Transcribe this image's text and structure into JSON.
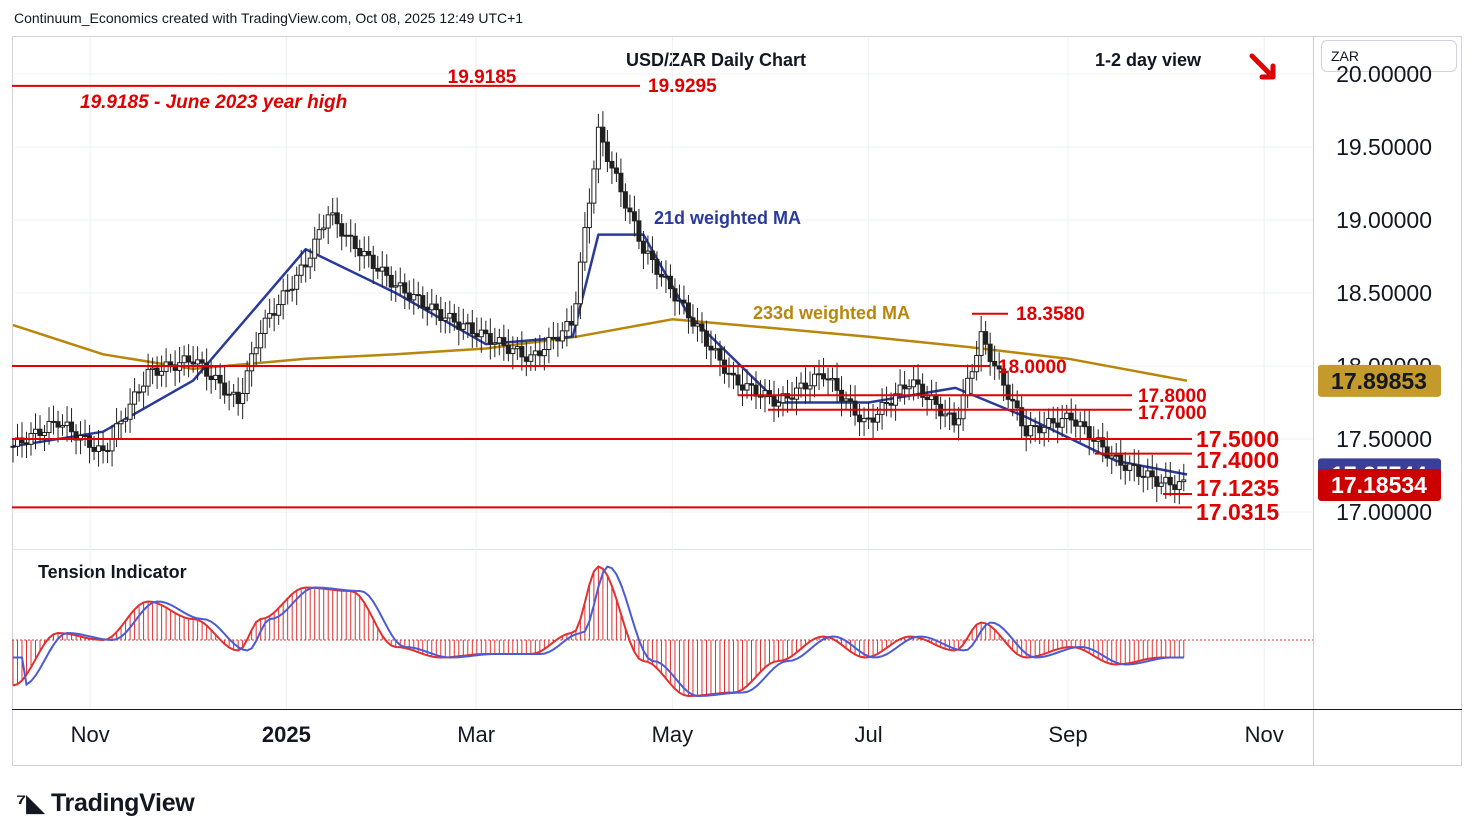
{
  "header": {
    "attribution": "Continuum_Economics created with TradingView.com, Oct 08, 2025 12:49 UTC+1",
    "currency": "ZAR",
    "title": "USD/ZAR Daily Chart",
    "view": "1-2 day view",
    "tension_label": "Tension Indicator",
    "logo_text": "TradingView"
  },
  "colors": {
    "support_resistance": "#e00000",
    "ma21": "#2a3a9a",
    "ma233": "#b8860b",
    "candle": "#202020",
    "price_badge_red": "#cc0000",
    "price_badge_blue": "#3a3f99",
    "price_badge_gold": "#c49a2c",
    "arrow": "#e00000",
    "tension_fill": "#e03030",
    "tension_line": "#4b5bd6"
  },
  "chart_data": {
    "type": "line",
    "title": "USD/ZAR Daily Chart",
    "x_ticks": [
      "Nov",
      "2025",
      "Mar",
      "May",
      "Jul",
      "Sep",
      "Nov"
    ],
    "y_ticks": [
      "20.00000",
      "19.50000",
      "19.00000",
      "18.50000",
      "18.00000",
      "17.50000",
      "17.00000"
    ],
    "ylim": [
      16.75,
      20.2
    ],
    "grid": true,
    "series": [
      {
        "name": "",
        "role": "price",
        "x": [
          "2024-10-08",
          "2024-10-22",
          "2024-11-05",
          "2024-11-19",
          "2024-12-03",
          "2024-12-17",
          "2024-12-24",
          "2025-01-07",
          "2025-01-14",
          "2025-01-21",
          "2025-02-04",
          "2025-02-18",
          "2025-03-04",
          "2025-03-18",
          "2025-03-31",
          "2025-04-08",
          "2025-04-15",
          "2025-04-22",
          "2025-05-06",
          "2025-05-20",
          "2025-06-03",
          "2025-06-17",
          "2025-06-30",
          "2025-07-14",
          "2025-07-28",
          "2025-08-05",
          "2025-08-19",
          "2025-09-02",
          "2025-09-16",
          "2025-09-30",
          "2025-10-08"
        ],
        "values": [
          17.45,
          17.62,
          17.4,
          17.95,
          18.05,
          17.75,
          18.25,
          18.7,
          19.05,
          18.85,
          18.55,
          18.35,
          18.2,
          18.05,
          18.3,
          19.6,
          19.2,
          18.8,
          18.35,
          17.9,
          17.75,
          17.95,
          17.6,
          17.9,
          17.6,
          18.2,
          17.55,
          17.65,
          17.35,
          17.2,
          17.185
        ]
      },
      {
        "name": "21d weighted MA",
        "x": [
          "2024-10-08",
          "2024-11-05",
          "2024-12-03",
          "2025-01-07",
          "2025-02-04",
          "2025-03-04",
          "2025-03-31",
          "2025-04-08",
          "2025-04-22",
          "2025-05-06",
          "2025-06-03",
          "2025-07-01",
          "2025-07-28",
          "2025-08-19",
          "2025-09-16",
          "2025-10-08"
        ],
        "values": [
          17.45,
          17.55,
          17.9,
          18.8,
          18.5,
          18.15,
          18.2,
          18.9,
          18.9,
          18.35,
          17.75,
          17.75,
          17.85,
          17.65,
          17.35,
          17.257
        ]
      },
      {
        "name": "233d weighted MA",
        "x": [
          "2024-10-08",
          "2024-11-05",
          "2024-12-03",
          "2025-01-07",
          "2025-02-04",
          "2025-03-04",
          "2025-04-01",
          "2025-05-01",
          "2025-06-01",
          "2025-07-01",
          "2025-08-01",
          "2025-09-01",
          "2025-10-08"
        ],
        "values": [
          18.28,
          18.08,
          17.98,
          18.05,
          18.08,
          18.12,
          18.2,
          18.32,
          18.26,
          18.2,
          18.13,
          18.05,
          17.899
        ]
      }
    ],
    "levels": [
      {
        "label": "19.9185",
        "value": 19.9185
      },
      {
        "label": "19.9185 - June 2023 year high",
        "value": 19.9185
      },
      {
        "label": "19.9295",
        "value": 19.9295
      },
      {
        "label": "18.3580",
        "value": 18.358
      },
      {
        "label": "18.0000",
        "value": 18.0
      },
      {
        "label": "17.8000",
        "value": 17.8
      },
      {
        "label": "17.7000",
        "value": 17.7
      },
      {
        "label": "17.5000",
        "value": 17.5
      },
      {
        "label": "17.4000",
        "value": 17.4
      },
      {
        "label": "17.1235",
        "value": 17.1235
      },
      {
        "label": "17.0315",
        "value": 17.0315
      }
    ],
    "annotations": [
      "21d weighted MA",
      "233d weighted MA"
    ],
    "price_badges": [
      {
        "label": "17.89853",
        "value": 17.89853,
        "color": "gold"
      },
      {
        "label": "17.25744",
        "value": 17.25744,
        "color": "blue"
      },
      {
        "label": "17.18534",
        "value": 17.18534,
        "color": "red"
      }
    ],
    "tension": {
      "name": "Tension Indicator",
      "x": [
        "2024-10-08",
        "2024-10-22",
        "2024-11-05",
        "2024-11-19",
        "2024-12-03",
        "2024-12-17",
        "2024-12-24",
        "2025-01-07",
        "2025-01-21",
        "2025-02-04",
        "2025-02-18",
        "2025-03-04",
        "2025-03-18",
        "2025-03-31",
        "2025-04-08",
        "2025-04-22",
        "2025-05-06",
        "2025-05-20",
        "2025-06-03",
        "2025-06-17",
        "2025-06-30",
        "2025-07-14",
        "2025-07-28",
        "2025-08-05",
        "2025-08-19",
        "2025-09-02",
        "2025-09-16",
        "2025-09-30",
        "2025-10-08"
      ],
      "values": [
        -0.65,
        0.1,
        0.0,
        0.55,
        0.3,
        -0.15,
        0.3,
        0.75,
        0.7,
        -0.1,
        -0.25,
        -0.2,
        -0.2,
        0.1,
        1.05,
        -0.3,
        -0.8,
        -0.75,
        -0.3,
        0.05,
        -0.25,
        0.05,
        -0.15,
        0.25,
        -0.25,
        -0.1,
        -0.35,
        -0.25,
        -0.25
      ]
    }
  }
}
